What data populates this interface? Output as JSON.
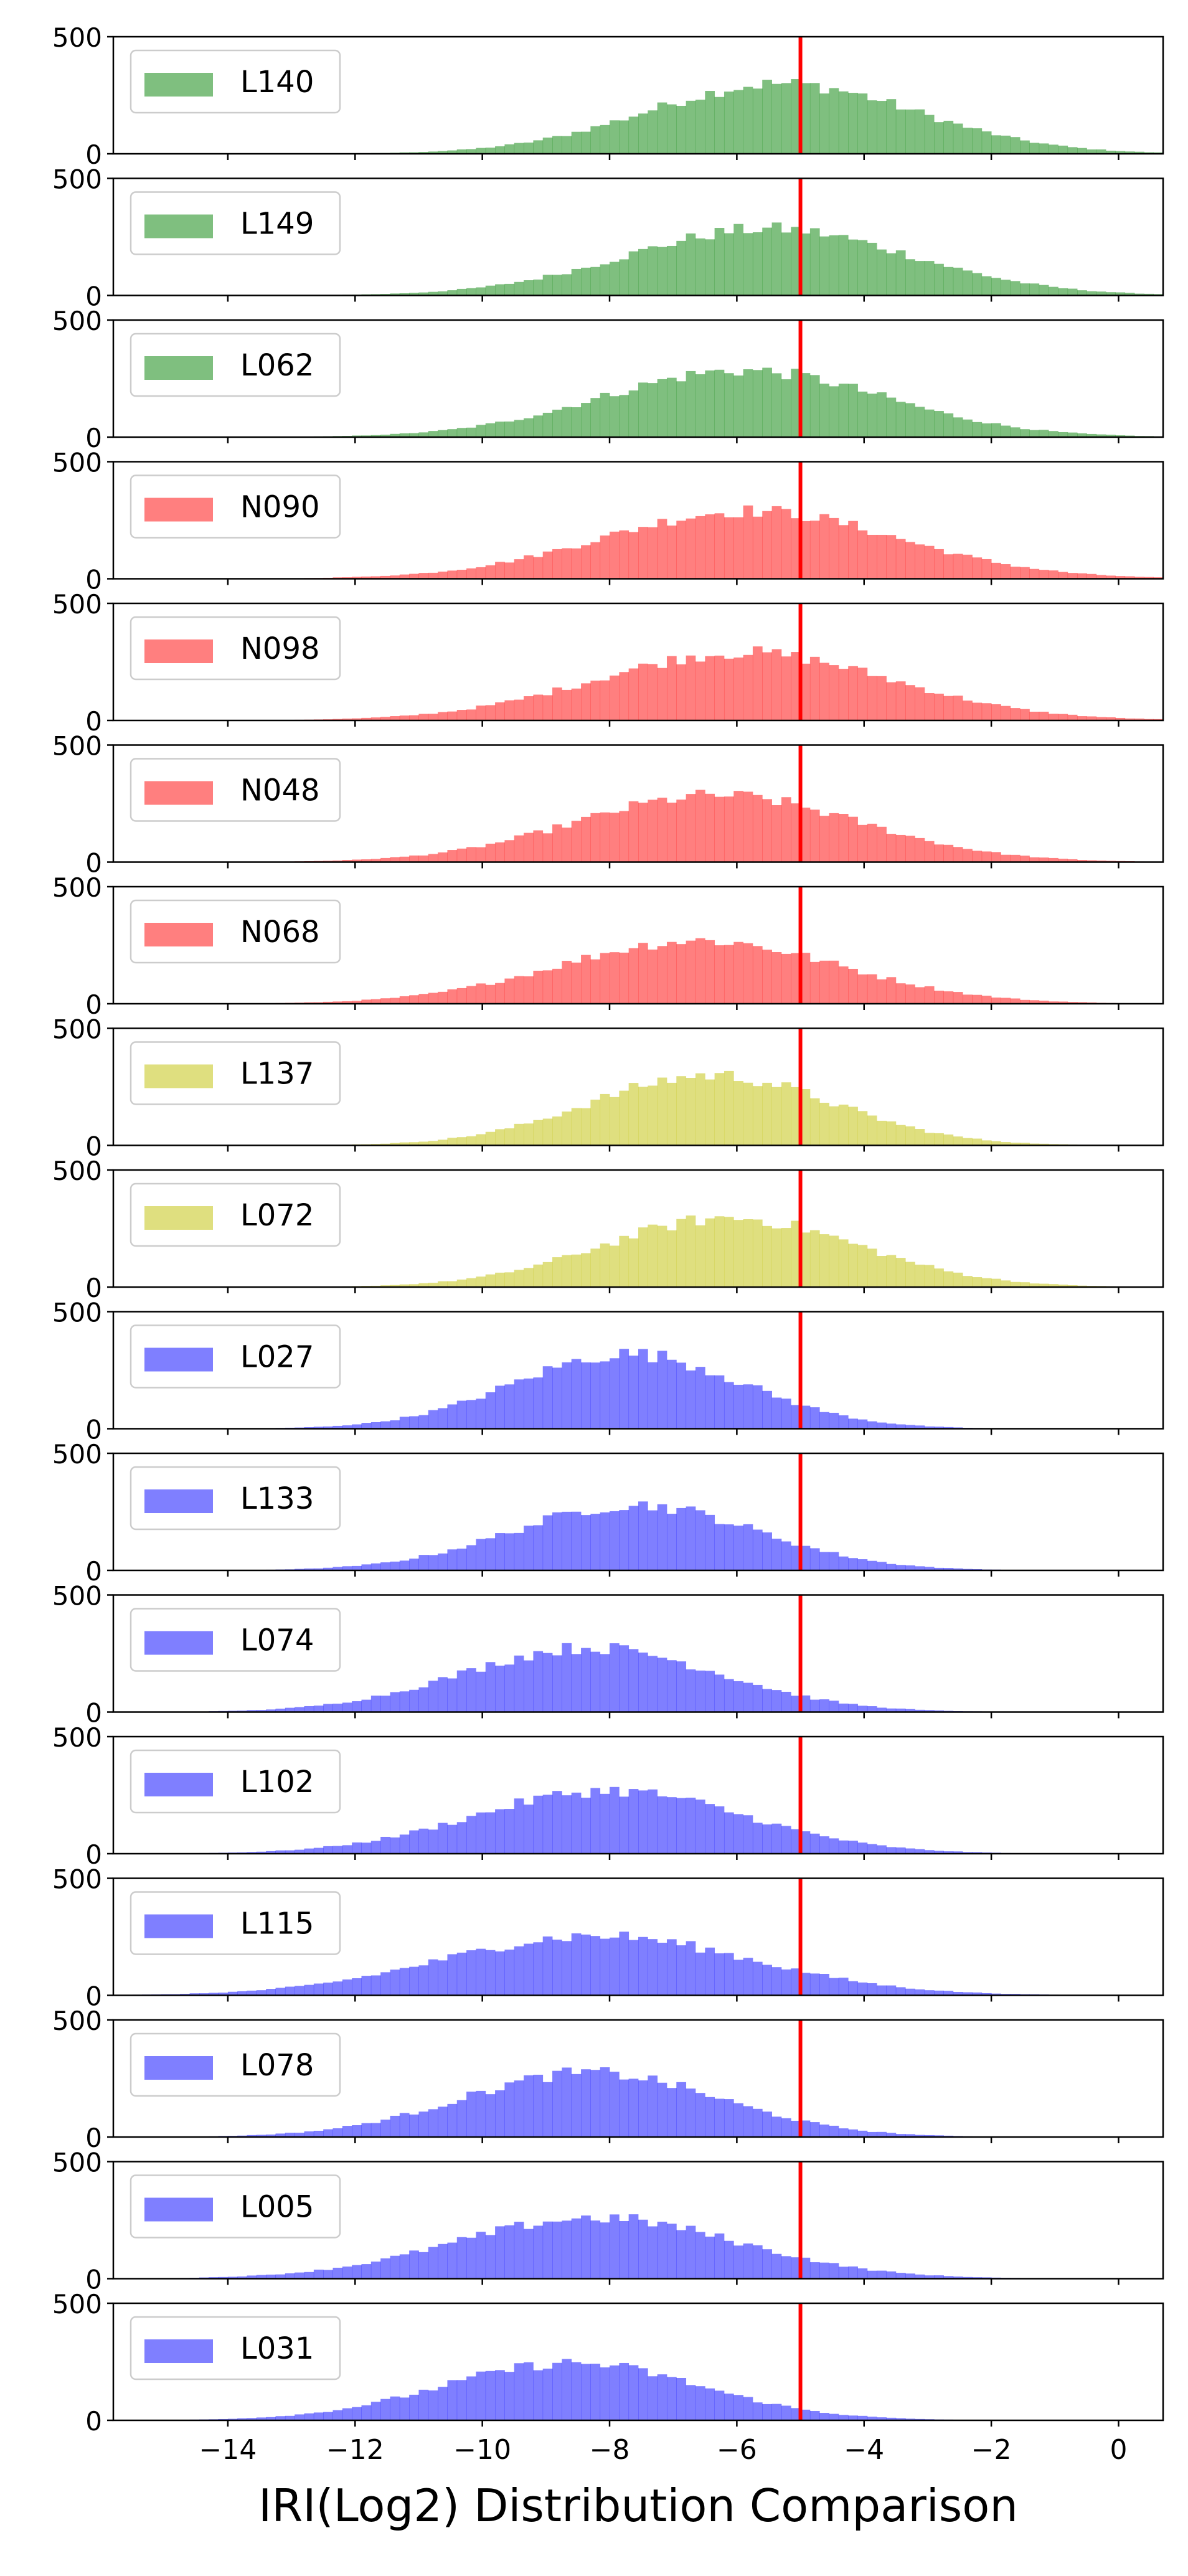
{
  "chart_data": {
    "type": "histogram",
    "layout": "stacked-subplots",
    "sharex": true,
    "xlabel": "IRI(Log2) Distribution Comparison",
    "xlim": [
      -15.8,
      0.7
    ],
    "xticks": [
      -14,
      -12,
      -10,
      -8,
      -6,
      -4,
      -2,
      0
    ],
    "xtick_labels": [
      "−14",
      "−12",
      "−10",
      "−8",
      "−6",
      "−4",
      "−2",
      "0"
    ],
    "ylim": [
      0,
      500
    ],
    "yticks": [
      0,
      500
    ],
    "ytick_labels": [
      "0",
      "500"
    ],
    "threshold": {
      "x": -5.0,
      "color": "#ff0000"
    },
    "legend_position": "upper-left",
    "panels": [
      {
        "label": "L140",
        "color": "#008000",
        "center": -5.3,
        "sd": 2.1,
        "peak": 300
      },
      {
        "label": "L149",
        "color": "#008000",
        "center": -5.5,
        "sd": 2.2,
        "peak": 285
      },
      {
        "label": "L062",
        "color": "#008000",
        "center": -5.9,
        "sd": 2.2,
        "peak": 285
      },
      {
        "label": "N090",
        "color": "#ff0000",
        "center": -5.8,
        "sd": 2.3,
        "peak": 290
      },
      {
        "label": "N098",
        "color": "#ff0000",
        "center": -5.9,
        "sd": 2.3,
        "peak": 290
      },
      {
        "label": "N048",
        "color": "#ff0000",
        "center": -6.3,
        "sd": 2.2,
        "peak": 285
      },
      {
        "label": "N068",
        "color": "#ff0000",
        "center": -6.6,
        "sd": 2.2,
        "peak": 270
      },
      {
        "label": "L137",
        "color": "#bfbf00",
        "center": -6.4,
        "sd": 1.9,
        "peak": 300
      },
      {
        "label": "L072",
        "color": "#bfbf00",
        "center": -6.1,
        "sd": 2.0,
        "peak": 295
      },
      {
        "label": "L027",
        "color": "#0000ff",
        "center": -7.7,
        "sd": 1.8,
        "peak": 320
      },
      {
        "label": "L133",
        "color": "#0000ff",
        "center": -7.6,
        "sd": 1.9,
        "peak": 280
      },
      {
        "label": "L074",
        "color": "#0000ff",
        "center": -8.3,
        "sd": 2.0,
        "peak": 275
      },
      {
        "label": "L102",
        "color": "#0000ff",
        "center": -8.0,
        "sd": 2.1,
        "peak": 270
      },
      {
        "label": "L115",
        "color": "#0000ff",
        "center": -8.2,
        "sd": 2.4,
        "peak": 255
      },
      {
        "label": "L078",
        "color": "#0000ff",
        "center": -8.3,
        "sd": 2.0,
        "peak": 275
      },
      {
        "label": "L005",
        "color": "#0000ff",
        "center": -8.2,
        "sd": 2.2,
        "peak": 260
      },
      {
        "label": "L031",
        "color": "#0000ff",
        "center": -8.6,
        "sd": 2.0,
        "peak": 245
      }
    ]
  }
}
